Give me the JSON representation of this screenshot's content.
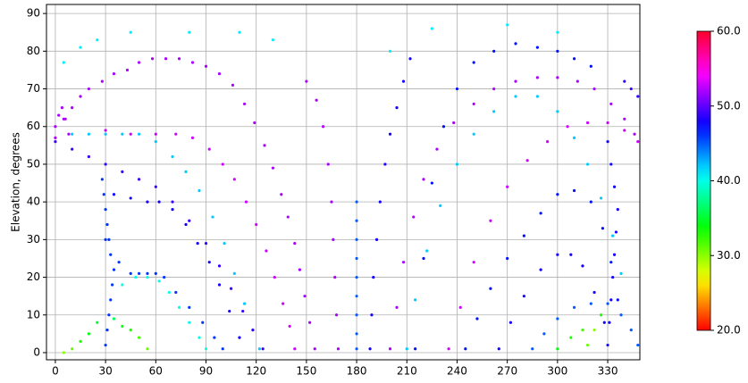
{
  "chart_data": {
    "type": "scatter",
    "ylabel": "Elevation, degrees",
    "xlim": [
      -5.3,
      349.2
    ],
    "ylim": [
      -1.9,
      92.4
    ],
    "xticks": [
      0,
      30,
      60,
      90,
      120,
      150,
      180,
      210,
      240,
      270,
      300,
      330
    ],
    "yticks": [
      0,
      10,
      20,
      30,
      40,
      50,
      60,
      70,
      80,
      90
    ],
    "grid": true,
    "colormap": "hsv",
    "clim": [
      20,
      60
    ],
    "cticks": [
      {
        "value": 20,
        "label": "20.0"
      },
      {
        "value": 30,
        "label": "30.0"
      },
      {
        "value": 40,
        "label": "40.0"
      },
      {
        "value": 50,
        "label": "50.0"
      },
      {
        "value": 60,
        "label": "60.0"
      }
    ],
    "series": [
      {
        "x": [
          0,
          5,
          10,
          15,
          20,
          28,
          35,
          43,
          50,
          58,
          66,
          74,
          82,
          90,
          98,
          106,
          113,
          119,
          125,
          130,
          135,
          139,
          143,
          146,
          149,
          152,
          155
        ],
        "y": [
          57,
          62,
          65,
          68,
          70,
          72,
          74,
          75,
          77,
          78,
          78,
          78,
          77,
          76,
          74,
          71,
          66,
          61,
          55,
          49,
          42,
          36,
          29,
          22,
          15,
          8,
          1
        ],
        "values": [
          52,
          52,
          52,
          52,
          52,
          52,
          52,
          52,
          52,
          52,
          52,
          52,
          52,
          52,
          52,
          52,
          52,
          52,
          52,
          52,
          52,
          52,
          52,
          52,
          52,
          52,
          52
        ]
      },
      {
        "x": [
          10,
          20,
          30,
          40,
          50,
          60,
          70,
          78,
          86,
          94,
          101,
          107,
          113,
          118,
          122
        ],
        "y": [
          58,
          58,
          58,
          58,
          58,
          56,
          52,
          48,
          43,
          36,
          29,
          21,
          13,
          6,
          1
        ],
        "values": [
          42,
          42,
          42,
          42,
          42,
          42,
          42,
          42,
          42,
          42,
          42,
          42,
          42,
          42,
          42
        ]
      },
      {
        "x": [
          30,
          45,
          60,
          72,
          82,
          92,
          100,
          107,
          114,
          120,
          126,
          131,
          136,
          140,
          143
        ],
        "y": [
          59,
          58,
          58,
          58,
          57,
          54,
          50,
          46,
          40,
          34,
          27,
          20,
          13,
          7,
          1
        ],
        "values": [
          53,
          53,
          53,
          53,
          53,
          53,
          53,
          53,
          53,
          53,
          53,
          53,
          53,
          53,
          53
        ]
      },
      {
        "x": [
          0,
          10,
          20,
          30,
          40,
          50,
          60,
          70,
          80,
          90,
          98,
          105,
          112,
          118,
          124
        ],
        "y": [
          56,
          54,
          52,
          50,
          48,
          46,
          44,
          40,
          35,
          29,
          23,
          17,
          11,
          6,
          1
        ],
        "values": [
          49,
          49,
          49,
          49,
          49,
          49,
          49,
          49,
          49,
          49,
          49,
          49,
          49,
          49,
          49
        ]
      },
      {
        "x": [
          35,
          45,
          55,
          62,
          70,
          78,
          85,
          92,
          98,
          104,
          110
        ],
        "y": [
          42,
          41,
          40,
          40,
          38,
          34,
          29,
          24,
          18,
          11,
          4
        ],
        "values": [
          48,
          48,
          48,
          48,
          48,
          48,
          48,
          48,
          48,
          48,
          48
        ]
      },
      {
        "x": [
          30,
          38,
          45,
          50,
          55,
          60,
          65,
          72,
          80,
          88,
          95,
          100
        ],
        "y": [
          30,
          24,
          21,
          21,
          21,
          21,
          20,
          16,
          12,
          8,
          4,
          1
        ],
        "values": [
          46,
          46,
          46,
          46,
          46,
          46,
          46,
          46,
          46,
          46,
          46,
          46
        ]
      },
      {
        "x": [
          40,
          48,
          55,
          62,
          68,
          74,
          80,
          86,
          90
        ],
        "y": [
          18,
          20,
          20,
          19,
          16,
          12,
          8,
          4,
          1
        ],
        "values": [
          40,
          40,
          40,
          40,
          40,
          40,
          40,
          40,
          40
        ]
      },
      {
        "x": [
          30,
          31,
          32,
          33,
          34,
          35,
          33,
          32,
          31,
          30,
          29,
          28
        ],
        "y": [
          2,
          6,
          10,
          14,
          18,
          22,
          26,
          30,
          34,
          38,
          42,
          46
        ],
        "values": [
          46,
          46,
          46,
          46,
          46,
          46,
          46,
          46,
          46,
          46,
          46,
          46
        ]
      },
      {
        "x": [
          5,
          10,
          15,
          20,
          25,
          35,
          40,
          45,
          50,
          55
        ],
        "y": [
          0,
          1,
          3,
          5,
          8,
          9,
          7,
          6,
          4,
          1
        ],
        "values": [
          30,
          31,
          33,
          34,
          35,
          36,
          34,
          33,
          32,
          31
        ]
      },
      {
        "x": [
          150,
          156,
          160,
          163,
          165,
          166,
          167,
          168,
          169
        ],
        "y": [
          72,
          67,
          60,
          50,
          40,
          30,
          20,
          10,
          1
        ],
        "values": [
          52,
          52,
          52,
          52,
          52,
          52,
          52,
          52,
          52
        ]
      },
      {
        "x": [
          180,
          180,
          180,
          180,
          180,
          180,
          180,
          180,
          180
        ],
        "y": [
          1,
          5,
          10,
          15,
          20,
          25,
          30,
          35,
          40
        ],
        "values": [
          45,
          45,
          45,
          45,
          45,
          45,
          45,
          45,
          45
        ]
      },
      {
        "x": [
          188,
          189,
          190,
          192,
          194,
          197,
          200,
          204,
          208,
          212
        ],
        "y": [
          1,
          10,
          20,
          30,
          40,
          50,
          58,
          65,
          72,
          78
        ],
        "values": [
          48,
          48,
          48,
          48,
          48,
          48,
          48,
          48,
          48,
          48
        ]
      },
      {
        "x": [
          200,
          204,
          208,
          214,
          220,
          228,
          238,
          250,
          262,
          275,
          288,
          300,
          312,
          322,
          332,
          340,
          346,
          350
        ],
        "y": [
          1,
          12,
          24,
          36,
          46,
          54,
          61,
          66,
          70,
          72,
          73,
          73,
          72,
          70,
          66,
          62,
          58,
          55
        ],
        "values": [
          52,
          52,
          52,
          52,
          52,
          52,
          52,
          52,
          52,
          52,
          52,
          52,
          52,
          52,
          52,
          52,
          52,
          52
        ]
      },
      {
        "x": [
          210,
          215,
          222,
          230,
          240,
          250,
          262,
          275,
          288,
          300,
          310,
          318,
          326,
          333,
          338
        ],
        "y": [
          1,
          14,
          27,
          39,
          50,
          58,
          64,
          68,
          68,
          64,
          57,
          50,
          41,
          31,
          21
        ],
        "values": [
          42,
          42,
          42,
          42,
          42,
          42,
          42,
          42,
          42,
          42,
          42,
          42,
          42,
          42,
          42
        ]
      },
      {
        "x": [
          235,
          242,
          250,
          260,
          270,
          282,
          294,
          306,
          318,
          330,
          340,
          348
        ],
        "y": [
          1,
          12,
          24,
          35,
          44,
          51,
          56,
          60,
          61,
          61,
          59,
          56
        ],
        "values": [
          53,
          53,
          53,
          53,
          53,
          53,
          53,
          53,
          53,
          53,
          53,
          53
        ]
      },
      {
        "x": [
          245,
          252,
          260,
          270,
          280,
          290,
          300,
          310,
          320,
          327,
          332,
          336
        ],
        "y": [
          1,
          9,
          17,
          25,
          31,
          37,
          42,
          43,
          40,
          33,
          24,
          14
        ],
        "values": [
          47,
          47,
          47,
          47,
          47,
          47,
          47,
          47,
          47,
          47,
          47,
          47
        ]
      },
      {
        "x": [
          265,
          272,
          280,
          290,
          300,
          308,
          315,
          322,
          328
        ],
        "y": [
          1,
          8,
          15,
          22,
          26,
          26,
          23,
          16,
          8
        ],
        "values": [
          48,
          48,
          48,
          48,
          48,
          48,
          48,
          48,
          48
        ]
      },
      {
        "x": [
          285,
          292,
          300,
          310,
          320,
          330,
          338,
          344,
          348
        ],
        "y": [
          1,
          5,
          9,
          12,
          13,
          13,
          10,
          6,
          2
        ],
        "values": [
          45,
          45,
          45,
          45,
          45,
          45,
          45,
          45,
          45
        ]
      },
      {
        "x": [
          330,
          331,
          332,
          333,
          334,
          335,
          336,
          334,
          332,
          330
        ],
        "y": [
          2,
          8,
          14,
          20,
          26,
          32,
          38,
          44,
          50,
          56
        ],
        "values": [
          48,
          48,
          48,
          48,
          48,
          48,
          48,
          48,
          48,
          48
        ]
      },
      {
        "x": [
          300,
          308,
          315,
          318,
          322,
          326
        ],
        "y": [
          1,
          4,
          6,
          2,
          6,
          10
        ],
        "values": [
          34,
          33,
          32,
          31,
          30,
          33
        ]
      },
      {
        "x": [
          5,
          15,
          25,
          45,
          80,
          110,
          130,
          200,
          225,
          270,
          300
        ],
        "y": [
          77,
          81,
          83,
          85,
          85,
          85,
          83,
          80,
          86,
          87,
          85
        ],
        "values": [
          41,
          41,
          41,
          41,
          41,
          41,
          41,
          41,
          41,
          41,
          41
        ]
      },
      {
        "x": [
          215,
          220,
          225,
          232,
          240,
          250,
          262,
          275,
          288,
          300,
          310,
          320
        ],
        "y": [
          1,
          25,
          45,
          60,
          70,
          77,
          80,
          82,
          81,
          80,
          78,
          76
        ],
        "values": [
          47,
          47,
          47,
          47,
          47,
          47,
          47,
          47,
          47,
          47,
          47,
          47
        ]
      },
      {
        "x": [
          340,
          344,
          348,
          351,
          353
        ],
        "y": [
          72,
          70,
          68,
          65,
          62
        ],
        "values": [
          49,
          49,
          49,
          49,
          49
        ]
      },
      {
        "x": [
          0,
          2,
          4,
          6,
          8
        ],
        "y": [
          60,
          63,
          65,
          62,
          58
        ],
        "values": [
          52,
          52,
          52,
          52,
          52
        ]
      }
    ]
  }
}
